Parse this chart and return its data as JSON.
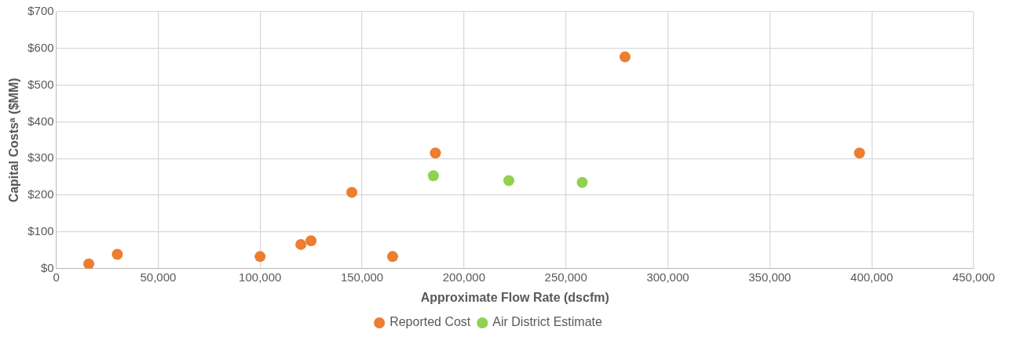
{
  "chart_data": {
    "type": "scatter",
    "xlabel": "Approximate Flow Rate (dscfm)",
    "ylabel": "Capital Costsᵃ ($MM)",
    "series": [
      {
        "name": "Reported Cost",
        "color": "#ed7d31",
        "x": [
          16000,
          30000,
          100000,
          120000,
          125000,
          145000,
          165000,
          186000,
          279000,
          394000
        ],
        "values": [
          13,
          39,
          33,
          66,
          76,
          208,
          33,
          315,
          577,
          315
        ]
      },
      {
        "name": "Air District Estimate",
        "color": "#92d050",
        "x": [
          185000,
          222000,
          258000
        ],
        "values": [
          253,
          240,
          235
        ]
      }
    ],
    "xlim": [
      0,
      450000
    ],
    "xticks": [
      0,
      {
        "value": 50000,
        "label": "50,000"
      },
      {
        "value": 100000,
        "label": "100,000"
      },
      {
        "value": 150000,
        "label": "150,000"
      },
      {
        "value": 200000,
        "label": "200,000"
      },
      {
        "value": 250000,
        "label": "250,000"
      },
      {
        "value": 300000,
        "label": "300,000"
      },
      {
        "value": 350000,
        "label": "350,000"
      },
      {
        "value": 400000,
        "label": "400,000"
      },
      {
        "value": 450000,
        "label": "450,000"
      }
    ],
    "ylim": [
      0,
      700
    ],
    "yticks": [
      {
        "value": 0,
        "label": "$0"
      },
      {
        "value": 100,
        "label": "$100"
      },
      {
        "value": 200,
        "label": "$200"
      },
      {
        "value": 300,
        "label": "$300"
      },
      {
        "value": 400,
        "label": "$400"
      },
      {
        "value": 500,
        "label": "$500"
      },
      {
        "value": 600,
        "label": "$600"
      },
      {
        "value": 700,
        "label": "$700"
      }
    ],
    "grid": true,
    "legend": "bottom",
    "marker": "circle"
  }
}
